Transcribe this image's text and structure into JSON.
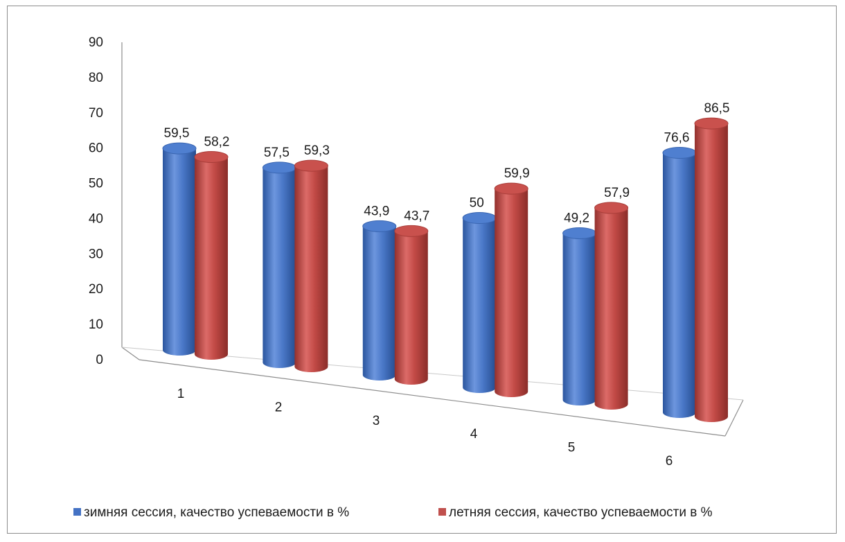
{
  "chart_data": {
    "type": "bar",
    "style": "3d-cylinder",
    "categories": [
      "1",
      "2",
      "3",
      "4",
      "5",
      "6"
    ],
    "series": [
      {
        "name": "зимняя сессия, качество успеваемости в %",
        "color": "#4472C4",
        "values": [
          59.5,
          57.5,
          43.9,
          50,
          49.2,
          76.6
        ],
        "labels": [
          "59,5",
          "57,5",
          "43,9",
          "50",
          "49,2",
          "76,6"
        ]
      },
      {
        "name": "летняя сессия, качество успеваемости в %",
        "color": "#C0504D",
        "values": [
          58.2,
          59.3,
          43.7,
          59.9,
          57.9,
          86.5
        ],
        "labels": [
          "58,2",
          "59,3",
          "43,7",
          "59,9",
          "57,9",
          "86,5"
        ]
      }
    ],
    "yticks": [
      "0",
      "10",
      "20",
      "30",
      "40",
      "50",
      "60",
      "70",
      "80",
      "90"
    ],
    "ylim": [
      0,
      90
    ],
    "grid": false,
    "legend_position": "bottom"
  }
}
